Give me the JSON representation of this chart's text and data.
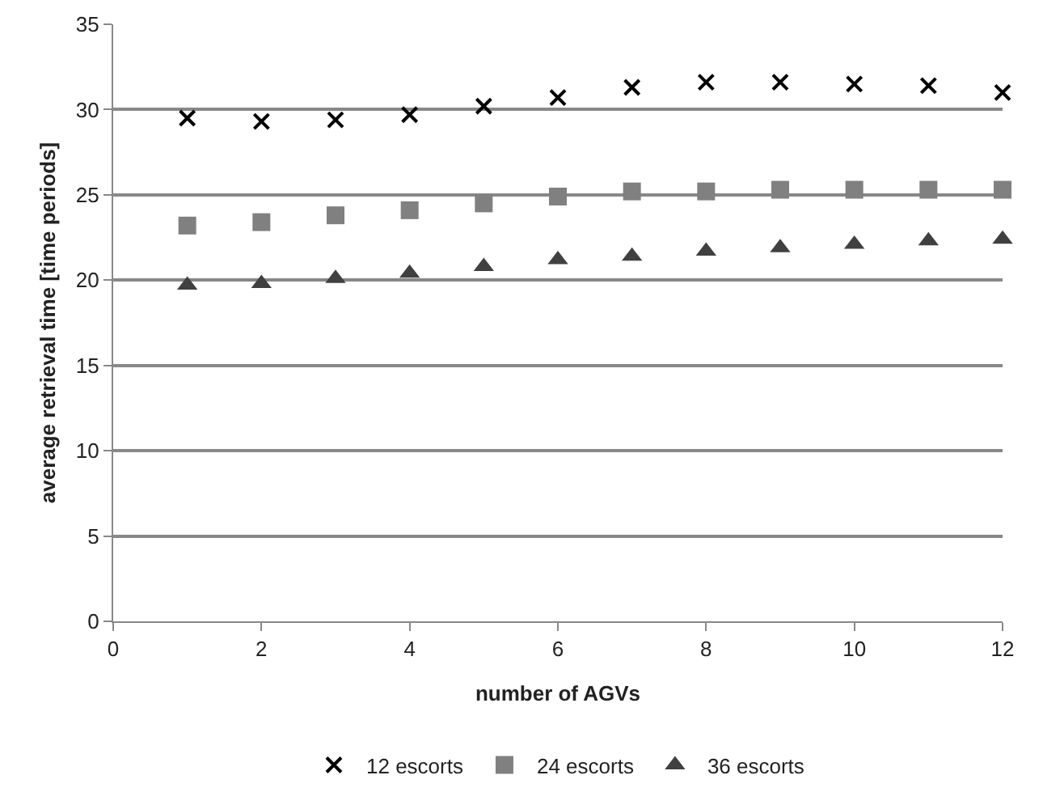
{
  "chart_data": {
    "type": "scatter",
    "xlabel": "number of AGVs",
    "ylabel": "average retrieval time [time periods]",
    "x": [
      1,
      2,
      3,
      4,
      5,
      6,
      7,
      8,
      9,
      10,
      11,
      12
    ],
    "series": [
      {
        "name": "12 escorts",
        "color": "#000000",
        "marker": "cross",
        "values": [
          29.5,
          29.3,
          29.4,
          29.7,
          30.2,
          30.7,
          31.3,
          31.6,
          31.6,
          31.5,
          31.4,
          31.0
        ]
      },
      {
        "name": "24 escorts",
        "color": "#808080",
        "marker": "square",
        "values": [
          23.2,
          23.4,
          23.8,
          24.1,
          24.5,
          24.9,
          25.2,
          25.2,
          25.3,
          25.3,
          25.3,
          25.3
        ]
      },
      {
        "name": "36 escorts",
        "color": "#404040",
        "marker": "triangle",
        "values": [
          19.7,
          19.8,
          20.1,
          20.4,
          20.8,
          21.2,
          21.4,
          21.7,
          21.9,
          22.1,
          22.3,
          22.4
        ]
      }
    ],
    "xlim": [
      0,
      12
    ],
    "xticks": [
      0,
      2,
      4,
      6,
      8,
      10,
      12
    ],
    "ylim": [
      0,
      35
    ],
    "yticks": [
      0,
      5,
      10,
      15,
      20,
      25,
      30,
      35
    ],
    "grid": "y",
    "legend": "bottom"
  }
}
